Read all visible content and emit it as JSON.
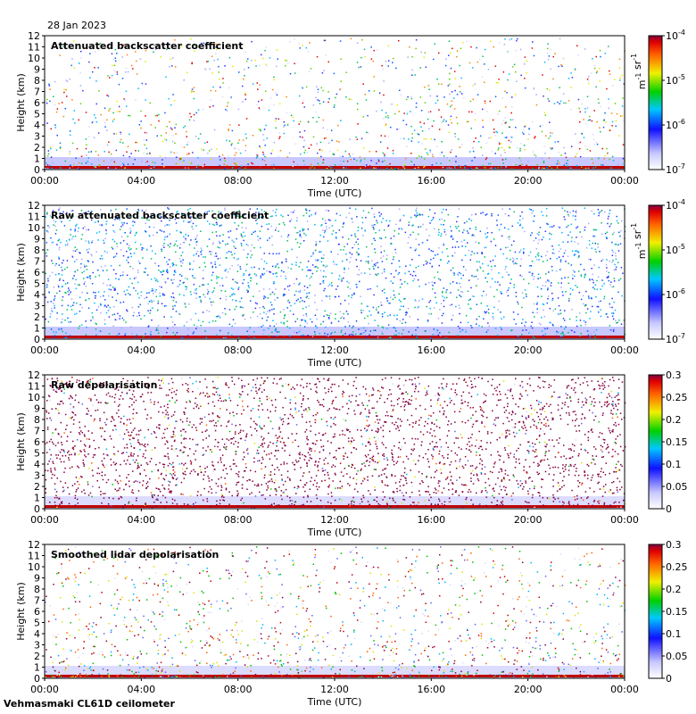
{
  "date_label": "28 Jan 2023",
  "footer_label": "Vehmasmaki CL61D ceilometer",
  "chart_data": [
    {
      "type": "heatmap",
      "title": "Attenuated backscatter coefficient",
      "xlabel": "Time (UTC)",
      "ylabel": "Height (km)",
      "x_ticks": [
        "00:00",
        "04:00",
        "08:00",
        "12:00",
        "16:00",
        "20:00",
        "00:00"
      ],
      "y_ticks": [
        "0",
        "1",
        "2",
        "3",
        "4",
        "5",
        "6",
        "7",
        "8",
        "9",
        "10",
        "11",
        "12"
      ],
      "ylim": [
        0,
        12
      ],
      "colorbar": {
        "scale": "log",
        "ticks": [
          "10-7",
          "10-6",
          "10-5",
          "10-4"
        ],
        "unit_label": "m-1 sr-1"
      }
    },
    {
      "type": "heatmap",
      "title": "Raw attenuated backscatter coefficient",
      "xlabel": "Time (UTC)",
      "ylabel": "Height (km)",
      "x_ticks": [
        "00:00",
        "04:00",
        "08:00",
        "12:00",
        "16:00",
        "20:00",
        "00:00"
      ],
      "y_ticks": [
        "0",
        "1",
        "2",
        "3",
        "4",
        "5",
        "6",
        "7",
        "8",
        "9",
        "10",
        "11",
        "12"
      ],
      "ylim": [
        0,
        12
      ],
      "colorbar": {
        "scale": "log",
        "ticks": [
          "10-7",
          "10-6",
          "10-5",
          "10-4"
        ],
        "unit_label": "m-1 sr-1"
      }
    },
    {
      "type": "heatmap",
      "title": "Raw depolarisation",
      "xlabel": "Time (UTC)",
      "ylabel": "Height (km)",
      "x_ticks": [
        "00:00",
        "04:00",
        "08:00",
        "12:00",
        "16:00",
        "20:00",
        "00:00"
      ],
      "y_ticks": [
        "0",
        "1",
        "2",
        "3",
        "4",
        "5",
        "6",
        "7",
        "8",
        "9",
        "10",
        "11",
        "12"
      ],
      "ylim": [
        0,
        12
      ],
      "colorbar": {
        "scale": "linear",
        "ticks": [
          "0",
          "0.05",
          "0.1",
          "0.15",
          "0.2",
          "0.25",
          "0.3"
        ],
        "unit_label": ""
      }
    },
    {
      "type": "heatmap",
      "title": "Smoothed lidar depolarisation",
      "xlabel": "Time (UTC)",
      "ylabel": "Height (km)",
      "x_ticks": [
        "00:00",
        "04:00",
        "08:00",
        "12:00",
        "16:00",
        "20:00",
        "00:00"
      ],
      "y_ticks": [
        "0",
        "1",
        "2",
        "3",
        "4",
        "5",
        "6",
        "7",
        "8",
        "9",
        "10",
        "11",
        "12"
      ],
      "ylim": [
        0,
        12
      ],
      "colorbar": {
        "scale": "linear",
        "ticks": [
          "0",
          "0.05",
          "0.1",
          "0.15",
          "0.2",
          "0.25",
          "0.3"
        ],
        "unit_label": ""
      }
    }
  ]
}
